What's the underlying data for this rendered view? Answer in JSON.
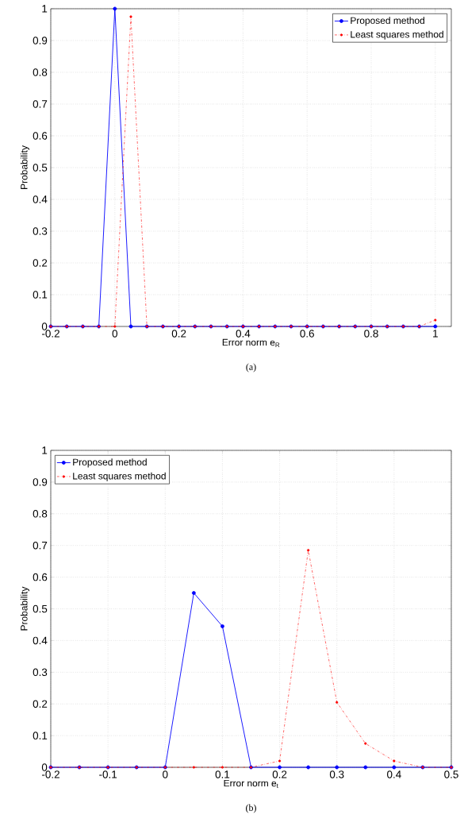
{
  "chart_data": [
    {
      "type": "line",
      "xlabel": "Error norm e$_{R}$",
      "ylabel": "Probability",
      "annotations": [
        "(a)"
      ],
      "xlim": [
        -0.2,
        1.05
      ],
      "ylim": [
        0,
        1
      ],
      "xticks": [
        -0.2,
        0,
        0.2,
        0.4,
        0.6,
        0.8,
        1
      ],
      "yticks": [
        0,
        0.1,
        0.2,
        0.3,
        0.4,
        0.5,
        0.6,
        0.7,
        0.8,
        0.9,
        1
      ],
      "grid": true,
      "legend": "top right",
      "marker": "circle",
      "x": [
        -0.2,
        -0.15,
        -0.1,
        -0.05,
        0,
        0.05,
        0.1,
        0.15,
        0.2,
        0.25,
        0.3,
        0.35,
        0.4,
        0.45,
        0.5,
        0.55,
        0.6,
        0.65,
        0.7,
        0.75,
        0.8,
        0.85,
        0.9,
        0.95,
        1
      ],
      "series": [
        {
          "name": "Proposed method",
          "color": "#0000ff",
          "line_style": "solid",
          "values": [
            0,
            0,
            0,
            0,
            1,
            0,
            0,
            0,
            0,
            0,
            0,
            0,
            0,
            0,
            0,
            0,
            0,
            0,
            0,
            0,
            0,
            0,
            0,
            0,
            0
          ]
        },
        {
          "name": "Least squares method",
          "color": "#ff0000",
          "line_style": "dashdot",
          "values": [
            0,
            0,
            0,
            0,
            0,
            0.975,
            0,
            0,
            0,
            0,
            0,
            0,
            0,
            0,
            0,
            0,
            0,
            0,
            0,
            0,
            0,
            0,
            0,
            0,
            0.02
          ]
        }
      ]
    },
    {
      "type": "line",
      "xlabel": "Error norm e$_{t}$",
      "ylabel": "Probability",
      "annotations": [
        "(b)"
      ],
      "xlim": [
        -0.2,
        0.5
      ],
      "ylim": [
        0,
        1
      ],
      "xticks": [
        -0.2,
        -0.1,
        0,
        0.1,
        0.2,
        0.3,
        0.4,
        0.5
      ],
      "yticks": [
        0,
        0.1,
        0.2,
        0.3,
        0.4,
        0.5,
        0.6,
        0.7,
        0.8,
        0.9,
        1
      ],
      "grid": true,
      "legend": "top left",
      "marker": "circle",
      "x": [
        -0.2,
        -0.15,
        -0.1,
        -0.05,
        0,
        0.05,
        0.1,
        0.15,
        0.2,
        0.25,
        0.3,
        0.35,
        0.4,
        0.45,
        0.5
      ],
      "series": [
        {
          "name": "Proposed method",
          "color": "#0000ff",
          "line_style": "solid",
          "values": [
            0,
            0,
            0,
            0,
            0,
            0.55,
            0.445,
            0,
            0,
            0,
            0,
            0,
            0,
            0,
            0
          ]
        },
        {
          "name": "Least squares method",
          "color": "#ff0000",
          "line_style": "dashdot",
          "values": [
            0,
            0,
            0,
            0,
            0,
            0,
            0,
            0,
            0.02,
            0.685,
            0.205,
            0.075,
            0.02,
            0,
            0
          ]
        }
      ]
    }
  ]
}
